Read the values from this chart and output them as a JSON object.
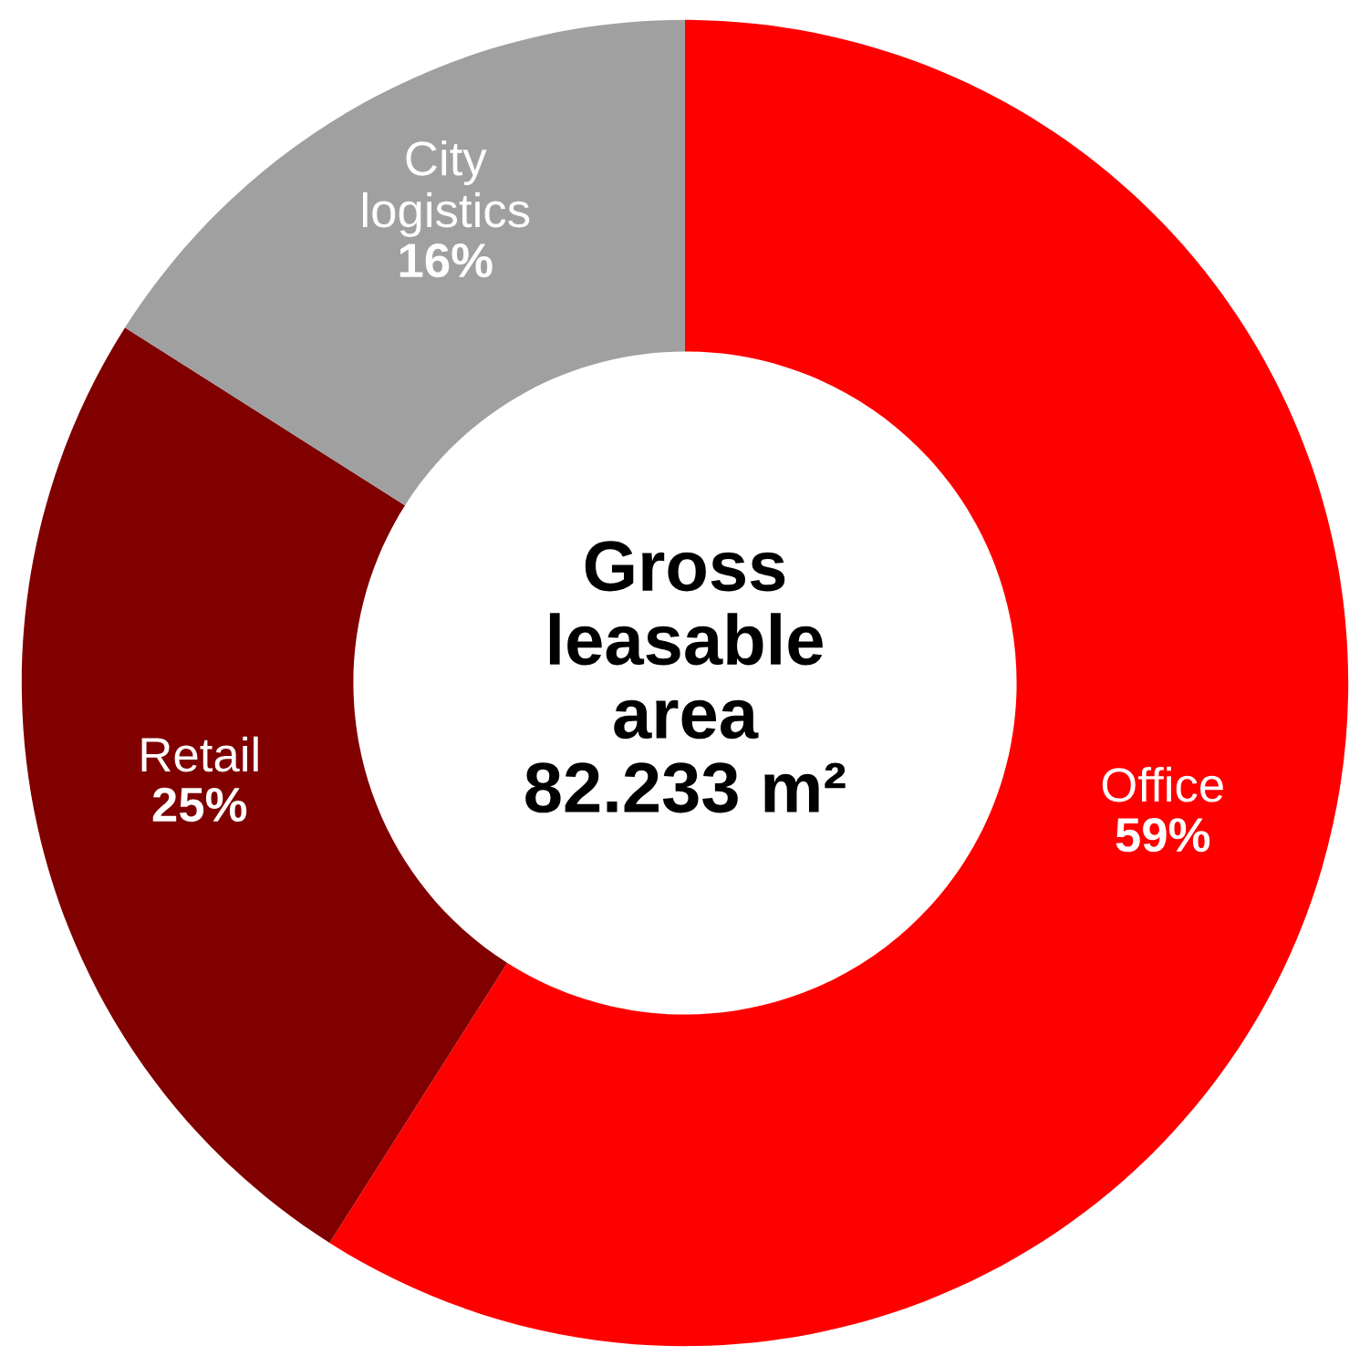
{
  "chart_data": {
    "type": "donut",
    "categories": [
      "Office",
      "Retail",
      "City\nlogistics"
    ],
    "values": [
      59,
      25,
      16
    ],
    "value_labels": [
      "59%",
      "25%",
      "16%"
    ],
    "colors": [
      "#ff0000",
      "#800000",
      "#a0a0a0"
    ],
    "annotations": [
      "Gross\nleasable\narea\n82.233 m²"
    ]
  }
}
